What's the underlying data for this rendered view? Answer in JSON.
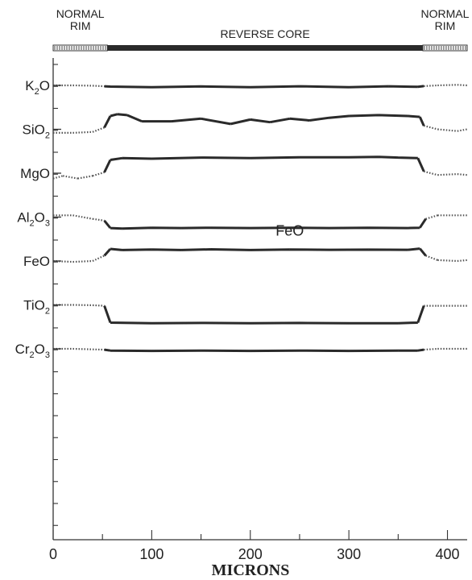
{
  "chart_data": {
    "type": "line",
    "xlabel": "MICRONS",
    "xlim": [
      0,
      420
    ],
    "x_ticks": [
      "0",
      "100",
      "200",
      "300",
      "400"
    ],
    "zones": [
      {
        "label": [
          "NORMAL",
          "RIM"
        ],
        "from": 0,
        "to": 55,
        "style": "hatched"
      },
      {
        "label": [
          "REVERSE CORE"
        ],
        "from": 55,
        "to": 375,
        "style": "solid"
      },
      {
        "label": [
          "NORMAL",
          "RIM"
        ],
        "from": 375,
        "to": 420,
        "style": "hatched"
      }
    ],
    "rows": [
      {
        "name": "K",
        "sub": "2",
        "tail": "O"
      },
      {
        "name": "SiO",
        "sub": "2",
        "tail": ""
      },
      {
        "name": "MgO",
        "sub": "",
        "tail": ""
      },
      {
        "name": "Al",
        "sub": "2",
        "tail": "O",
        "sub2": "3"
      },
      {
        "name": "FeO",
        "sub": "",
        "tail": ""
      },
      {
        "name": "TiO",
        "sub": "2",
        "tail": ""
      },
      {
        "name": "Cr",
        "sub": "2",
        "tail": "O",
        "sub2": "3"
      }
    ],
    "annotations": [
      {
        "text": "FeO",
        "x": 240,
        "row": 3.42
      }
    ],
    "rim_segments_note": "dotted lines = normal rim, solid = reverse core",
    "series": [
      {
        "row": 0,
        "x": [
          0,
          20,
          40,
          52,
          58,
          100,
          150,
          200,
          250,
          300,
          340,
          370,
          376,
          390,
          410,
          420
        ],
        "y": [
          0,
          0,
          0.02,
          0.05,
          0.07,
          0.1,
          0.06,
          0.1,
          0.05,
          0.1,
          0.05,
          0.08,
          0.04,
          0,
          -0.03,
          0
        ]
      },
      {
        "row": 1,
        "x": [
          0,
          20,
          40,
          52,
          58,
          65,
          75,
          90,
          120,
          150,
          180,
          200,
          220,
          240,
          260,
          280,
          300,
          330,
          360,
          372,
          376,
          390,
          410,
          420
        ],
        "y": [
          0.2,
          0.2,
          0.15,
          -0.1,
          -0.75,
          -0.85,
          -0.8,
          -0.45,
          -0.45,
          -0.6,
          -0.3,
          -0.55,
          -0.4,
          -0.6,
          -0.5,
          -0.65,
          -0.75,
          -0.8,
          -0.75,
          -0.7,
          -0.2,
          0.0,
          0.1,
          0.0
        ]
      },
      {
        "row": 2,
        "x": [
          0,
          10,
          25,
          40,
          52,
          58,
          70,
          100,
          150,
          200,
          250,
          300,
          330,
          350,
          370,
          376,
          390,
          410,
          420
        ],
        "y": [
          0.3,
          0.15,
          0.3,
          0.15,
          -0.05,
          -0.75,
          -0.85,
          -0.82,
          -0.88,
          -0.85,
          -0.9,
          -0.9,
          -0.92,
          -0.88,
          -0.85,
          -0.1,
          0.1,
          0.05,
          0.1
        ]
      },
      {
        "row": 3,
        "x": [
          0,
          20,
          40,
          52,
          58,
          70,
          100,
          130,
          160,
          200,
          240,
          280,
          320,
          360,
          372,
          378,
          390,
          410,
          420
        ],
        "y": [
          -0.1,
          -0.1,
          0.1,
          0.2,
          0.62,
          0.65,
          0.6,
          0.62,
          0.6,
          0.62,
          0.6,
          0.62,
          0.6,
          0.62,
          0.6,
          0.1,
          -0.1,
          -0.1,
          -0.1
        ]
      },
      {
        "row": 4,
        "x": [
          0,
          20,
          40,
          52,
          58,
          70,
          100,
          130,
          160,
          200,
          240,
          280,
          320,
          360,
          372,
          378,
          390,
          410,
          420
        ],
        "y": [
          0,
          0.05,
          0,
          -0.3,
          -0.68,
          -0.62,
          -0.65,
          -0.62,
          -0.66,
          -0.62,
          -0.65,
          -0.63,
          -0.64,
          -0.63,
          -0.7,
          -0.3,
          -0.05,
          0,
          -0.05
        ]
      },
      {
        "row": 5,
        "x": [
          0,
          20,
          40,
          52,
          58,
          100,
          150,
          200,
          250,
          300,
          350,
          370,
          376,
          390,
          410,
          420
        ],
        "y": [
          0,
          0,
          0.02,
          0.05,
          1.0,
          1.03,
          1.02,
          1.03,
          1.02,
          1.03,
          1.03,
          1.0,
          0.05,
          0.05,
          0.05,
          0.05
        ]
      },
      {
        "row": 6,
        "x": [
          0,
          20,
          40,
          52,
          58,
          100,
          150,
          200,
          250,
          300,
          350,
          370,
          376,
          390,
          410,
          420
        ],
        "y": [
          0,
          0,
          0.03,
          0.05,
          0.1,
          0.12,
          0.1,
          0.12,
          0.1,
          0.12,
          0.1,
          0.1,
          0.05,
          0,
          0,
          0
        ]
      }
    ]
  }
}
